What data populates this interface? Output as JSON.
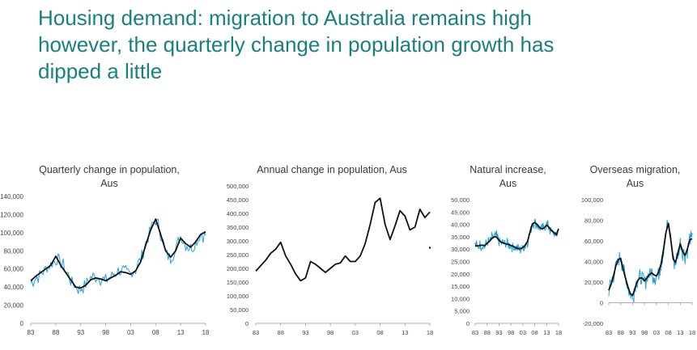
{
  "slide": {
    "title_lines": [
      "Housing demand: migration to Australia remains high",
      "however, the quarterly change in population growth has",
      "dipped a little"
    ]
  },
  "colors": {
    "title": "#19807f",
    "raw_series": "#20a4d8",
    "trend_series": "#111111",
    "axis": "#999999",
    "text": "#3a3a3a"
  },
  "chart_data": [
    {
      "id": "quarterly-population",
      "type": "line",
      "title_lines": [
        "Quarterly change in population,",
        "Aus"
      ],
      "y_tick_labels": [
        "0",
        "20,000",
        "40,000",
        "60,000",
        "80,000",
        "100,000",
        "120,000",
        "140,000"
      ],
      "y_tick_values": [
        0,
        20000,
        40000,
        60000,
        80000,
        100000,
        120000,
        140000
      ],
      "x_tick_labels": [
        "83",
        "88",
        "93",
        "98",
        "03",
        "08",
        "13",
        "18"
      ],
      "ylim": [
        0,
        140000
      ],
      "xlim": [
        1983,
        2018
      ],
      "series": [
        {
          "name": "Quarterly change (raw)",
          "style": "raw",
          "noise": 9000,
          "x": [
            1983,
            1984,
            1985,
            1986,
            1987,
            1988,
            1989,
            1990,
            1991,
            1992,
            1993,
            1994,
            1995,
            1996,
            1997,
            1998,
            1999,
            2000,
            2001,
            2002,
            2003,
            2004,
            2005,
            2006,
            2007,
            2008,
            2009,
            2010,
            2011,
            2012,
            2013,
            2014,
            2015,
            2016,
            2017,
            2018
          ],
          "values": [
            45000,
            50000,
            55000,
            60000,
            64000,
            70000,
            68000,
            58000,
            48000,
            40000,
            38000,
            44000,
            50000,
            52000,
            50000,
            46000,
            52000,
            56000,
            58000,
            56000,
            55000,
            60000,
            72000,
            88000,
            105000,
            115000,
            100000,
            78000,
            72000,
            82000,
            96000,
            88000,
            82000,
            88000,
            98000,
            98000
          ]
        },
        {
          "name": "Quarterly change (trend)",
          "style": "trend",
          "x": [
            1983,
            1984,
            1985,
            1986,
            1987,
            1988,
            1989,
            1990,
            1991,
            1992,
            1993,
            1994,
            1995,
            1996,
            1997,
            1998,
            1999,
            2000,
            2001,
            2002,
            2003,
            2004,
            2005,
            2006,
            2007,
            2008,
            2009,
            2010,
            2011,
            2012,
            2013,
            2014,
            2015,
            2016,
            2017,
            2018
          ],
          "values": [
            47000,
            52000,
            56000,
            60000,
            64000,
            74000,
            64000,
            56000,
            48000,
            40000,
            39000,
            42000,
            48000,
            50000,
            49000,
            47000,
            50000,
            53000,
            57000,
            56000,
            54000,
            58000,
            68000,
            86000,
            103000,
            115000,
            98000,
            80000,
            73000,
            80000,
            94000,
            88000,
            84000,
            90000,
            98000,
            101000
          ]
        }
      ],
      "annotations": [
        {
          "x": 2018,
          "y": 69000,
          "text": ""
        }
      ]
    },
    {
      "id": "annual-population",
      "type": "line",
      "title_lines": [
        "Annual change in population, Aus"
      ],
      "y_tick_labels": [
        "0",
        "50,000",
        "100,000",
        "150,000",
        "200,000",
        "250,000",
        "300,000",
        "350,000",
        "400,000",
        "450,000",
        "500,000"
      ],
      "y_tick_values": [
        0,
        50000,
        100000,
        150000,
        200000,
        250000,
        300000,
        350000,
        400000,
        450000,
        500000
      ],
      "x_tick_labels": [
        "83",
        "88",
        "93",
        "98",
        "03",
        "08",
        "13",
        "18"
      ],
      "ylim": [
        0,
        500000
      ],
      "xlim": [
        1983,
        2018
      ],
      "series": [
        {
          "name": "Annual change",
          "style": "trend",
          "x": [
            1983,
            1984,
            1985,
            1986,
            1987,
            1988,
            1989,
            1990,
            1991,
            1992,
            1993,
            1994,
            1995,
            1996,
            1997,
            1998,
            1999,
            2000,
            2001,
            2002,
            2003,
            2004,
            2005,
            2006,
            2007,
            2008,
            2009,
            2010,
            2011,
            2012,
            2013,
            2014,
            2015,
            2016,
            2017,
            2018
          ],
          "values": [
            190000,
            210000,
            230000,
            255000,
            270000,
            295000,
            245000,
            215000,
            180000,
            155000,
            165000,
            225000,
            215000,
            200000,
            185000,
            200000,
            215000,
            220000,
            245000,
            225000,
            225000,
            245000,
            290000,
            360000,
            440000,
            455000,
            360000,
            305000,
            355000,
            410000,
            390000,
            340000,
            350000,
            415000,
            385000,
            405000
          ]
        }
      ],
      "points": [
        {
          "x": 2018,
          "y": 275000
        }
      ]
    },
    {
      "id": "natural-increase",
      "type": "line",
      "title_lines": [
        "Natural increase,",
        "Aus"
      ],
      "y_tick_labels": [
        "0",
        "5,000",
        "10,000",
        "15,000",
        "20,000",
        "25,000",
        "30,000",
        "35,000",
        "40,000",
        "45,000",
        "50,000"
      ],
      "y_tick_values": [
        0,
        5000,
        10000,
        15000,
        20000,
        25000,
        30000,
        35000,
        40000,
        45000,
        50000
      ],
      "x_tick_labels": [
        "83",
        "88",
        "93",
        "98",
        "03",
        "08",
        "13",
        "18"
      ],
      "ylim": [
        0,
        50000
      ],
      "xlim": [
        1983,
        2018
      ],
      "series": [
        {
          "name": "Natural increase (raw)",
          "style": "raw",
          "noise": 2500,
          "x": [
            1983,
            1984,
            1985,
            1986,
            1987,
            1988,
            1989,
            1990,
            1991,
            1992,
            1993,
            1994,
            1995,
            1996,
            1997,
            1998,
            1999,
            2000,
            2001,
            2002,
            2003,
            2004,
            2005,
            2006,
            2007,
            2008,
            2009,
            2010,
            2011,
            2012,
            2013,
            2014,
            2015,
            2016,
            2017,
            2018
          ],
          "values": [
            31500,
            31000,
            31500,
            31500,
            31000,
            32500,
            33000,
            34500,
            35000,
            35000,
            33500,
            32500,
            32500,
            32000,
            32000,
            31500,
            31000,
            30500,
            30000,
            30000,
            30500,
            31500,
            33000,
            37000,
            40500,
            41000,
            40000,
            38500,
            38000,
            38500,
            40000,
            38500,
            37000,
            36500,
            35000,
            38000
          ]
        },
        {
          "name": "Natural increase (trend)",
          "style": "trend",
          "x": [
            1983,
            1984,
            1985,
            1986,
            1987,
            1988,
            1989,
            1990,
            1991,
            1992,
            1993,
            1994,
            1995,
            1996,
            1997,
            1998,
            1999,
            2000,
            2001,
            2002,
            2003,
            2004,
            2005,
            2006,
            2007,
            2008,
            2009,
            2010,
            2011,
            2012,
            2013,
            2014,
            2015,
            2016,
            2017,
            2018
          ],
          "values": [
            31500,
            31200,
            31500,
            31600,
            31400,
            32400,
            33200,
            34300,
            35000,
            34800,
            33600,
            32700,
            32400,
            32100,
            31900,
            31500,
            31100,
            30600,
            30200,
            30200,
            30600,
            31600,
            33200,
            36800,
            40200,
            40800,
            40000,
            38800,
            38200,
            38600,
            39700,
            38800,
            37500,
            36800,
            35800,
            38200
          ]
        }
      ]
    },
    {
      "id": "overseas-migration",
      "type": "line",
      "title_lines": [
        "Overseas migration,",
        "Aus"
      ],
      "y_tick_labels": [
        "-20,000",
        "0",
        "20,000",
        "40,000",
        "60,000",
        "80,000",
        "100,000"
      ],
      "y_tick_values": [
        -20000,
        0,
        20000,
        40000,
        60000,
        80000,
        100000
      ],
      "x_tick_labels": [
        "83",
        "88",
        "93",
        "98",
        "03",
        "08",
        "13",
        "18"
      ],
      "ylim": [
        -20000,
        100000
      ],
      "xlim": [
        1983,
        2018
      ],
      "series": [
        {
          "name": "Overseas migration (raw)",
          "style": "raw",
          "noise": 9000,
          "x": [
            1983,
            1984,
            1985,
            1986,
            1987,
            1988,
            1989,
            1990,
            1991,
            1992,
            1993,
            1994,
            1995,
            1996,
            1997,
            1998,
            1999,
            2000,
            2001,
            2002,
            2003,
            2004,
            2005,
            2006,
            2007,
            2008,
            2009,
            2010,
            2011,
            2012,
            2013,
            2014,
            2015,
            2016,
            2017,
            2018
          ],
          "values": [
            13000,
            20000,
            27000,
            35000,
            40000,
            44000,
            34000,
            25000,
            15000,
            8000,
            5000,
            14000,
            22000,
            24000,
            24000,
            20000,
            24000,
            28000,
            30000,
            26000,
            25000,
            30000,
            38000,
            52000,
            68000,
            78000,
            62000,
            42000,
            38000,
            48000,
            58000,
            50000,
            46000,
            52000,
            62000,
            60000
          ]
        },
        {
          "name": "Overseas migration (trend)",
          "style": "trend",
          "x": [
            1983,
            1984,
            1985,
            1986,
            1987,
            1988,
            1989,
            1990,
            1991,
            1992,
            1993,
            1994,
            1995,
            1996,
            1997,
            1998,
            1999,
            2000,
            2001,
            2002,
            2003,
            2004,
            2005,
            2006,
            2007,
            2008,
            2009,
            2010,
            2011,
            2012,
            2013,
            2014,
            2015,
            2016,
            2017,
            2018
          ],
          "values": [
            12000,
            18000,
            26000,
            36000,
            42000,
            43000,
            33000,
            24000,
            16000,
            9000,
            7000,
            14000,
            21000,
            24000,
            24000,
            21000,
            24000,
            27000,
            29000,
            27000,
            26000,
            30000,
            38000,
            52000,
            68000,
            77000,
            62000,
            43000,
            39000,
            48000,
            57000,
            50000,
            46000,
            52000,
            61000,
            62000
          ]
        }
      ]
    }
  ]
}
